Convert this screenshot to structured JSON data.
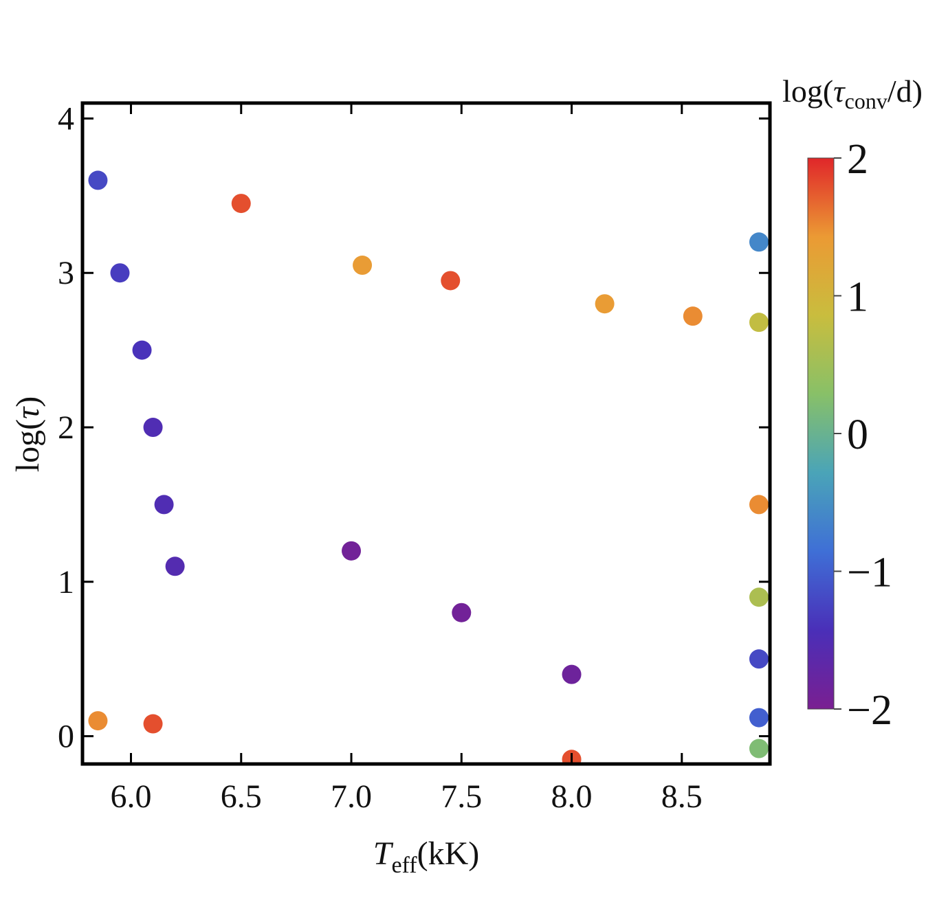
{
  "chart_data": {
    "type": "scatter",
    "xlabel": {
      "main": "T",
      "sub": "eff",
      "unit": "(kK)"
    },
    "ylabel": {
      "pre": "log(",
      "sym": "τ",
      "post": ")"
    },
    "x_ticks": [
      "6.0",
      "6.5",
      "7.0",
      "7.5",
      "8.0",
      "8.5"
    ],
    "x_tick_values": [
      6.0,
      6.5,
      7.0,
      7.5,
      8.0,
      8.5
    ],
    "y_ticks": [
      "0",
      "1",
      "2",
      "3",
      "4"
    ],
    "y_tick_values": [
      0,
      1,
      2,
      3,
      4
    ],
    "xlim": [
      5.78,
      8.9
    ],
    "ylim": [
      -0.18,
      4.1
    ],
    "colorbar": {
      "title": {
        "pre": "log(",
        "sym": "τ",
        "sub": "conv",
        "post": "/d)"
      },
      "ticks": [
        "2",
        "1",
        "0",
        "−1",
        "−2"
      ],
      "tick_values": [
        2,
        1,
        0,
        -1,
        -2
      ],
      "range": [
        -2,
        2
      ],
      "colors": [
        "#7a1f91",
        "#4a2fb8",
        "#3f6fd6",
        "#4aa4b8",
        "#88c068",
        "#c9bd3e",
        "#eb9a34",
        "#e0262a"
      ]
    },
    "series": [
      {
        "values": [
          {
            "x": 5.85,
            "y": 3.6,
            "c": -1.2
          },
          {
            "x": 5.95,
            "y": 3.0,
            "c": -1.3
          },
          {
            "x": 6.05,
            "y": 2.5,
            "c": -1.4
          },
          {
            "x": 6.1,
            "y": 2.0,
            "c": -1.5
          },
          {
            "x": 6.15,
            "y": 1.5,
            "c": -1.5
          },
          {
            "x": 6.2,
            "y": 1.1,
            "c": -1.55
          },
          {
            "x": 6.5,
            "y": 3.45,
            "c": 1.8
          },
          {
            "x": 7.05,
            "y": 3.05,
            "c": 1.4
          },
          {
            "x": 7.45,
            "y": 2.95,
            "c": 1.8
          },
          {
            "x": 8.15,
            "y": 2.8,
            "c": 1.4
          },
          {
            "x": 8.55,
            "y": 2.72,
            "c": 1.5
          },
          {
            "x": 8.85,
            "y": 2.68,
            "c": 0.8
          },
          {
            "x": 8.85,
            "y": 3.2,
            "c": -0.6
          },
          {
            "x": 8.85,
            "y": 1.5,
            "c": 1.5
          },
          {
            "x": 8.85,
            "y": 0.9,
            "c": 0.6
          },
          {
            "x": 8.85,
            "y": 0.5,
            "c": -1.2
          },
          {
            "x": 8.85,
            "y": 0.12,
            "c": -1.0
          },
          {
            "x": 8.85,
            "y": -0.08,
            "c": 0.2
          },
          {
            "x": 8.0,
            "y": -0.15,
            "c": 1.8
          },
          {
            "x": 5.85,
            "y": 0.1,
            "c": 1.5
          },
          {
            "x": 6.1,
            "y": 0.08,
            "c": 1.8
          },
          {
            "x": 7.0,
            "y": 1.2,
            "c": -1.9
          },
          {
            "x": 7.5,
            "y": 0.8,
            "c": -1.9
          },
          {
            "x": 8.0,
            "y": 0.4,
            "c": -1.85
          }
        ]
      }
    ]
  }
}
